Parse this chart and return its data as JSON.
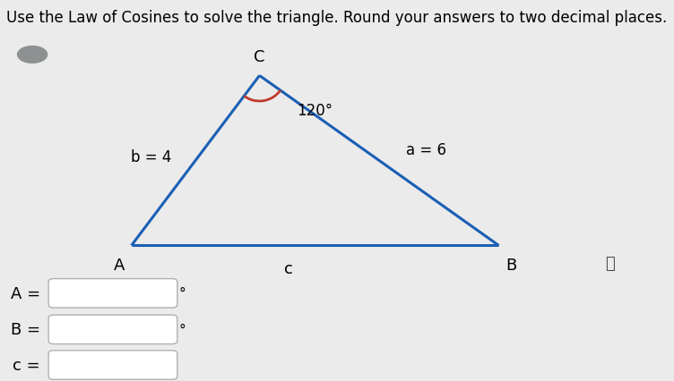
{
  "title": "Use the Law of Cosines to solve the triangle. Round your answers to two decimal places.",
  "title_fontsize": 12,
  "bg_color": "#ebebeb",
  "triangle_color": "#1a5fb4",
  "triangle_linewidth": 2.2,
  "label_b": "b = 4",
  "label_a": "a = 6",
  "label_c_side": "c",
  "label_C_angle": "120°",
  "label_A": "A",
  "label_B": "B",
  "label_C": "C",
  "arc_color": "#c0392b",
  "input_labels": [
    "A =",
    "B =",
    "c ="
  ],
  "degree_symbols": [
    true,
    true,
    false
  ],
  "circle_color": "#8e9192",
  "info_icon": "ⓘ",
  "vertex_A_fig": [
    0.195,
    0.355
  ],
  "vertex_C_fig": [
    0.385,
    0.8
  ],
  "vertex_B_fig": [
    0.74,
    0.355
  ]
}
